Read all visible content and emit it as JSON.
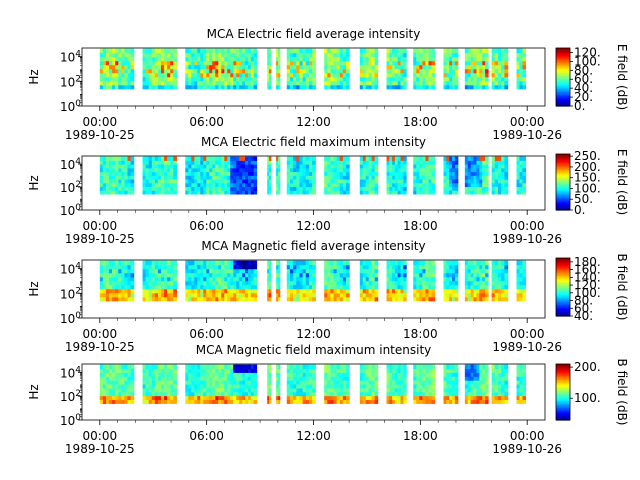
{
  "chart_data": [
    {
      "type": "heatmap",
      "title": "MCA  Electric field average intensity",
      "ylabel": "Hz",
      "colorbar_label": "E field (dB)",
      "colorbar_range": [
        0,
        130
      ],
      "colorbar_ticks": [
        "0.",
        "20.",
        "40.",
        "60.",
        "80.",
        "100.",
        "120."
      ],
      "y_log_range_exp": [
        0,
        4.7
      ],
      "y_tick_exps": [
        0,
        2,
        4
      ],
      "profile": "eavg"
    },
    {
      "type": "heatmap",
      "title": "MCA  Electric field maximum intensity",
      "ylabel": "Hz",
      "colorbar_label": "E field (dB)",
      "colorbar_range": [
        0,
        260
      ],
      "colorbar_ticks": [
        "0.",
        "50.",
        "100.",
        "150.",
        "200.",
        "250."
      ],
      "y_log_range_exp": [
        0,
        4.7
      ],
      "y_tick_exps": [
        0,
        2,
        4
      ],
      "profile": "emax"
    },
    {
      "type": "heatmap",
      "title": "MCA  Magnetic field average intensity",
      "ylabel": "Hz",
      "colorbar_label": "B field (dB)",
      "colorbar_range": [
        40,
        190
      ],
      "colorbar_ticks": [
        "40.",
        "60.",
        "80.",
        "100.",
        "120.",
        "140.",
        "160.",
        "180."
      ],
      "y_log_range_exp": [
        0,
        4.7
      ],
      "y_tick_exps": [
        0,
        2,
        4
      ],
      "profile": "bavg"
    },
    {
      "type": "heatmap",
      "title": "MCA  Magnetic field maximum intensity",
      "ylabel": "Hz",
      "colorbar_label": "B field (dB)",
      "colorbar_range": [
        30,
        210
      ],
      "colorbar_ticks": [
        "100.",
        "200."
      ],
      "y_log_range_exp": [
        0,
        4.7
      ],
      "y_tick_exps": [
        0,
        2,
        4
      ],
      "profile": "bmax"
    }
  ],
  "shared": {
    "x_range_hours": [
      -1,
      25
    ],
    "x_ticks": [
      {
        "hour": 0,
        "time": "00:00",
        "date": "1989-10-25"
      },
      {
        "hour": 6,
        "time": "06:00",
        "date": ""
      },
      {
        "hour": 12,
        "time": "12:00",
        "date": ""
      },
      {
        "hour": 18,
        "time": "18:00",
        "date": ""
      },
      {
        "hour": 24,
        "time": "00:00",
        "date": "1989-10-26"
      }
    ],
    "data_intervals_hours": [
      [
        0.0,
        1.9
      ],
      [
        2.4,
        4.3
      ],
      [
        4.8,
        8.0
      ],
      [
        8.0,
        8.8
      ],
      [
        9.4,
        9.6
      ],
      [
        9.9,
        10.1
      ],
      [
        10.5,
        12.1
      ],
      [
        12.6,
        14.0
      ],
      [
        14.6,
        15.6
      ],
      [
        16.1,
        17.2
      ],
      [
        17.6,
        18.8
      ],
      [
        19.3,
        20.1
      ],
      [
        20.5,
        21.8
      ],
      [
        22.0,
        22.9
      ],
      [
        23.4,
        23.9
      ]
    ]
  }
}
